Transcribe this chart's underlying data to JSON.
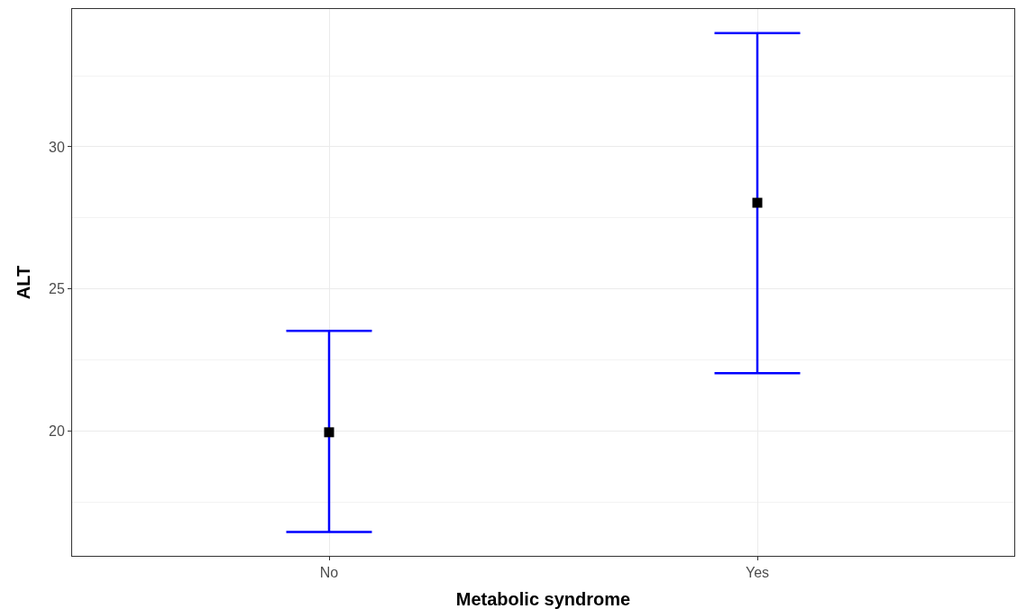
{
  "chart_data": {
    "type": "scatter",
    "xlabel": "Metabolic syndrome",
    "ylabel": "ALT",
    "categories": [
      "No",
      "Yes"
    ],
    "values": [
      19.95,
      28.03
    ],
    "errors": [
      [
        16.44,
        23.52
      ],
      [
        22.03,
        34.0
      ]
    ],
    "color": "#0000ff",
    "colors": [
      "#000000",
      "#000000"
    ],
    "ylim": [
      15.6,
      34.85
    ],
    "yticks": [
      20,
      25,
      30
    ],
    "grid": true,
    "marker": "square"
  }
}
